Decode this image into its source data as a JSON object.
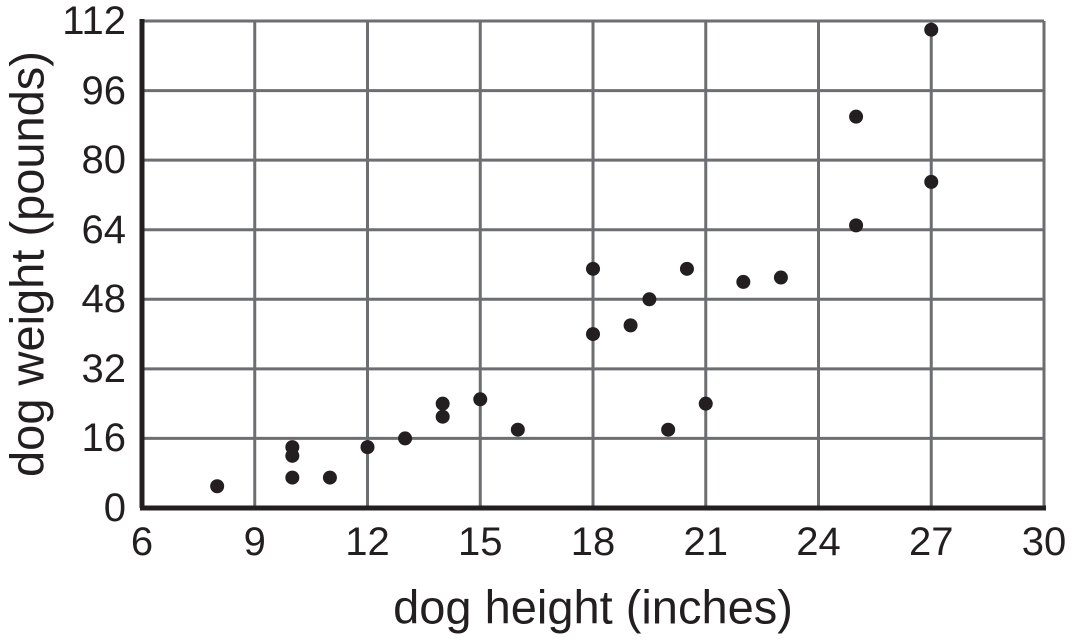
{
  "chart_data": {
    "type": "scatter",
    "title": "",
    "xlabel": "dog height (inches)",
    "ylabel": "dog weight (pounds)",
    "xlim": [
      6,
      30
    ],
    "ylim": [
      0,
      112
    ],
    "x_ticks": [
      6,
      9,
      12,
      15,
      18,
      21,
      24,
      27,
      30
    ],
    "y_ticks": [
      0,
      16,
      32,
      48,
      64,
      80,
      96,
      112
    ],
    "grid": true,
    "legend": "none",
    "points": [
      [
        8,
        5
      ],
      [
        10,
        7
      ],
      [
        10,
        12
      ],
      [
        10,
        14
      ],
      [
        11,
        7
      ],
      [
        12,
        14
      ],
      [
        13,
        16
      ],
      [
        14,
        21
      ],
      [
        14,
        24
      ],
      [
        15,
        25
      ],
      [
        16,
        18
      ],
      [
        18,
        40
      ],
      [
        18,
        55
      ],
      [
        19,
        42
      ],
      [
        19.5,
        48
      ],
      [
        20,
        18
      ],
      [
        20.5,
        55
      ],
      [
        21,
        24
      ],
      [
        22,
        52
      ],
      [
        23,
        53
      ],
      [
        25,
        65
      ],
      [
        25,
        90
      ],
      [
        27,
        75
      ],
      [
        27,
        110
      ]
    ],
    "colors": {
      "point": "#231f20",
      "gridline": "#6d6e71",
      "axis": "#231f20",
      "text": "#231f20",
      "background": "#ffffff"
    }
  }
}
